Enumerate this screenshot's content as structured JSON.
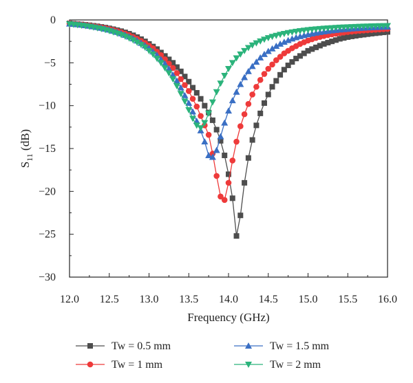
{
  "chart_data": {
    "type": "line",
    "xlabel": "Frequency (GHz)",
    "ylabel": {
      "base": "S",
      "sub": "11",
      "suffix": " (dB)"
    },
    "xlim": [
      12.0,
      16.0
    ],
    "ylim": [
      -30,
      0
    ],
    "xticks": [
      "12.0",
      "12.5",
      "13.0",
      "13.5",
      "14.0",
      "14.5",
      "15.0",
      "15.5",
      "16.0"
    ],
    "yticks": [
      "0",
      "−5",
      "−10",
      "−15",
      "−20",
      "−25",
      "−30"
    ],
    "grid": false,
    "legend_position": "bottom",
    "series": [
      {
        "name": "Tw = 0.5 mm",
        "color": "#4d4d4d",
        "marker": "square",
        "x": [
          12.0,
          12.05,
          12.1,
          12.15,
          12.2,
          12.25,
          12.3,
          12.35,
          12.4,
          12.45,
          12.5,
          12.55,
          12.6,
          12.65,
          12.7,
          12.75,
          12.8,
          12.85,
          12.9,
          12.95,
          13.0,
          13.05,
          13.1,
          13.15,
          13.2,
          13.25,
          13.3,
          13.35,
          13.4,
          13.45,
          13.5,
          13.55,
          13.6,
          13.65,
          13.7,
          13.75,
          13.8,
          13.85,
          13.9,
          13.95,
          14.0,
          14.05,
          14.1,
          14.15,
          14.2,
          14.25,
          14.3,
          14.35,
          14.4,
          14.45,
          14.5,
          14.55,
          14.6,
          14.65,
          14.7,
          14.75,
          14.8,
          14.85,
          14.9,
          14.95,
          15.0,
          15.05,
          15.1,
          15.15,
          15.2,
          15.25,
          15.3,
          15.35,
          15.4,
          15.45,
          15.5,
          15.55,
          15.6,
          15.65,
          15.7,
          15.75,
          15.8,
          15.85,
          15.9,
          15.95,
          16.0
        ],
        "y": [
          -0.4,
          -0.44,
          -0.48,
          -0.52,
          -0.57,
          -0.62,
          -0.68,
          -0.74,
          -0.81,
          -0.89,
          -0.98,
          -1.08,
          -1.19,
          -1.31,
          -1.45,
          -1.61,
          -1.79,
          -2.0,
          -2.24,
          -2.5,
          -2.8,
          -3.1,
          -3.4,
          -3.8,
          -4.2,
          -4.6,
          -5.0,
          -5.5,
          -6.0,
          -6.6,
          -7.2,
          -7.9,
          -8.5,
          -9.2,
          -10.0,
          -10.8,
          -11.7,
          -12.8,
          -14.1,
          -15.8,
          -18.0,
          -20.8,
          -25.2,
          -22.8,
          -19.0,
          -16.1,
          -14.0,
          -12.3,
          -10.9,
          -9.7,
          -8.7,
          -7.8,
          -7.1,
          -6.4,
          -5.8,
          -5.3,
          -4.9,
          -4.5,
          -4.2,
          -3.9,
          -3.6,
          -3.4,
          -3.2,
          -3.0,
          -2.8,
          -2.65,
          -2.5,
          -2.35,
          -2.2,
          -2.1,
          -2.0,
          -1.92,
          -1.85,
          -1.78,
          -1.72,
          -1.66,
          -1.6,
          -1.55,
          -1.5,
          -1.45,
          -1.4
        ]
      },
      {
        "name": "Tw = 1 mm",
        "color": "#ee3a3a",
        "marker": "circle",
        "x": [
          12.0,
          12.05,
          12.1,
          12.15,
          12.2,
          12.25,
          12.3,
          12.35,
          12.4,
          12.45,
          12.5,
          12.55,
          12.6,
          12.65,
          12.7,
          12.75,
          12.8,
          12.85,
          12.9,
          12.95,
          13.0,
          13.05,
          13.1,
          13.15,
          13.2,
          13.25,
          13.3,
          13.35,
          13.4,
          13.45,
          13.5,
          13.55,
          13.6,
          13.65,
          13.7,
          13.75,
          13.8,
          13.85,
          13.9,
          13.95,
          14.0,
          14.05,
          14.1,
          14.15,
          14.2,
          14.25,
          14.3,
          14.35,
          14.4,
          14.45,
          14.5,
          14.55,
          14.6,
          14.65,
          14.7,
          14.75,
          14.8,
          14.85,
          14.9,
          14.95,
          15.0,
          15.05,
          15.1,
          15.15,
          15.2,
          15.25,
          15.3,
          15.35,
          15.4,
          15.45,
          15.5,
          15.55,
          15.6,
          15.65,
          15.7,
          15.75,
          15.8,
          15.85,
          15.9,
          15.95,
          16.0
        ],
        "y": [
          -0.42,
          -0.46,
          -0.5,
          -0.55,
          -0.6,
          -0.66,
          -0.72,
          -0.79,
          -0.87,
          -0.96,
          -1.06,
          -1.17,
          -1.3,
          -1.44,
          -1.6,
          -1.78,
          -1.98,
          -2.2,
          -2.45,
          -2.7,
          -3.0,
          -3.3,
          -3.7,
          -4.1,
          -4.6,
          -5.1,
          -5.6,
          -6.2,
          -6.9,
          -7.6,
          -8.3,
          -9.2,
          -10.1,
          -11.2,
          -12.3,
          -13.4,
          -15.6,
          -18.2,
          -20.6,
          -21.0,
          -19.0,
          -16.4,
          -14.2,
          -12.4,
          -11.0,
          -9.8,
          -8.7,
          -7.8,
          -7.0,
          -6.3,
          -5.7,
          -5.2,
          -4.7,
          -4.3,
          -3.9,
          -3.6,
          -3.3,
          -3.05,
          -2.8,
          -2.6,
          -2.4,
          -2.25,
          -2.1,
          -1.98,
          -1.87,
          -1.77,
          -1.68,
          -1.6,
          -1.53,
          -1.47,
          -1.41,
          -1.36,
          -1.31,
          -1.27,
          -1.23,
          -1.2,
          -1.17,
          -1.14,
          -1.11,
          -1.08,
          -1.05
        ]
      },
      {
        "name": "Tw = 1.5 mm",
        "color": "#3a6fc4",
        "marker": "triangle-up",
        "x": [
          12.0,
          12.05,
          12.1,
          12.15,
          12.2,
          12.25,
          12.3,
          12.35,
          12.4,
          12.45,
          12.5,
          12.55,
          12.6,
          12.65,
          12.7,
          12.75,
          12.8,
          12.85,
          12.9,
          12.95,
          13.0,
          13.05,
          13.1,
          13.15,
          13.2,
          13.25,
          13.3,
          13.35,
          13.4,
          13.45,
          13.5,
          13.55,
          13.6,
          13.65,
          13.7,
          13.75,
          13.8,
          13.85,
          13.9,
          13.95,
          14.0,
          14.05,
          14.1,
          14.15,
          14.2,
          14.25,
          14.3,
          14.35,
          14.4,
          14.45,
          14.5,
          14.55,
          14.6,
          14.65,
          14.7,
          14.75,
          14.8,
          14.85,
          14.9,
          14.95,
          15.0,
          15.05,
          15.1,
          15.15,
          15.2,
          15.25,
          15.3,
          15.35,
          15.4,
          15.45,
          15.5,
          15.55,
          15.6,
          15.65,
          15.7,
          15.75,
          15.8,
          15.85,
          15.9,
          15.95,
          16.0
        ],
        "y": [
          -0.45,
          -0.49,
          -0.53,
          -0.58,
          -0.64,
          -0.7,
          -0.77,
          -0.85,
          -0.94,
          -1.04,
          -1.15,
          -1.28,
          -1.42,
          -1.58,
          -1.76,
          -1.96,
          -2.18,
          -2.43,
          -2.7,
          -3.0,
          -3.3,
          -3.7,
          -4.1,
          -4.6,
          -5.1,
          -5.7,
          -6.4,
          -7.1,
          -7.9,
          -8.8,
          -9.7,
          -10.7,
          -11.8,
          -12.9,
          -14.2,
          -15.8,
          -16.0,
          -15.2,
          -13.6,
          -12.0,
          -10.6,
          -9.4,
          -8.4,
          -7.5,
          -6.7,
          -6.0,
          -5.4,
          -4.9,
          -4.4,
          -4.0,
          -3.65,
          -3.35,
          -3.05,
          -2.8,
          -2.58,
          -2.38,
          -2.2,
          -2.05,
          -1.92,
          -1.8,
          -1.69,
          -1.6,
          -1.51,
          -1.43,
          -1.36,
          -1.3,
          -1.24,
          -1.19,
          -1.14,
          -1.1,
          -1.06,
          -1.02,
          -0.99,
          -0.96,
          -0.93,
          -0.9,
          -0.88,
          -0.86,
          -0.84,
          -0.82,
          -0.8
        ]
      },
      {
        "name": "Tw = 2 mm",
        "color": "#2bb37b",
        "marker": "triangle-down",
        "x": [
          12.0,
          12.05,
          12.1,
          12.15,
          12.2,
          12.25,
          12.3,
          12.35,
          12.4,
          12.45,
          12.5,
          12.55,
          12.6,
          12.65,
          12.7,
          12.75,
          12.8,
          12.85,
          12.9,
          12.95,
          13.0,
          13.05,
          13.1,
          13.15,
          13.2,
          13.25,
          13.3,
          13.35,
          13.4,
          13.45,
          13.5,
          13.55,
          13.6,
          13.65,
          13.7,
          13.75,
          13.8,
          13.85,
          13.9,
          13.95,
          14.0,
          14.05,
          14.1,
          14.15,
          14.2,
          14.25,
          14.3,
          14.35,
          14.4,
          14.45,
          14.5,
          14.55,
          14.6,
          14.65,
          14.7,
          14.75,
          14.8,
          14.85,
          14.9,
          14.95,
          15.0,
          15.05,
          15.1,
          15.15,
          15.2,
          15.25,
          15.3,
          15.35,
          15.4,
          15.45,
          15.5,
          15.55,
          15.6,
          15.65,
          15.7,
          15.75,
          15.8,
          15.85,
          15.9,
          15.95,
          16.0
        ],
        "y": [
          -0.48,
          -0.53,
          -0.58,
          -0.64,
          -0.7,
          -0.77,
          -0.85,
          -0.94,
          -1.04,
          -1.15,
          -1.27,
          -1.41,
          -1.56,
          -1.73,
          -1.92,
          -2.13,
          -2.36,
          -2.62,
          -2.9,
          -3.2,
          -3.6,
          -4.0,
          -4.5,
          -5.0,
          -5.6,
          -6.2,
          -6.9,
          -7.7,
          -8.6,
          -9.5,
          -10.5,
          -11.5,
          -12.3,
          -12.6,
          -12.0,
          -10.9,
          -9.6,
          -8.4,
          -7.4,
          -6.5,
          -5.7,
          -5.0,
          -4.45,
          -4.0,
          -3.6,
          -3.25,
          -2.95,
          -2.7,
          -2.48,
          -2.28,
          -2.1,
          -1.95,
          -1.82,
          -1.7,
          -1.6,
          -1.5,
          -1.42,
          -1.35,
          -1.28,
          -1.22,
          -1.16,
          -1.11,
          -1.07,
          -1.03,
          -0.99,
          -0.96,
          -0.93,
          -0.9,
          -0.87,
          -0.85,
          -0.83,
          -0.81,
          -0.79,
          -0.77,
          -0.75,
          -0.74,
          -0.72,
          -0.71,
          -0.7,
          -0.69,
          -0.68
        ]
      }
    ]
  }
}
